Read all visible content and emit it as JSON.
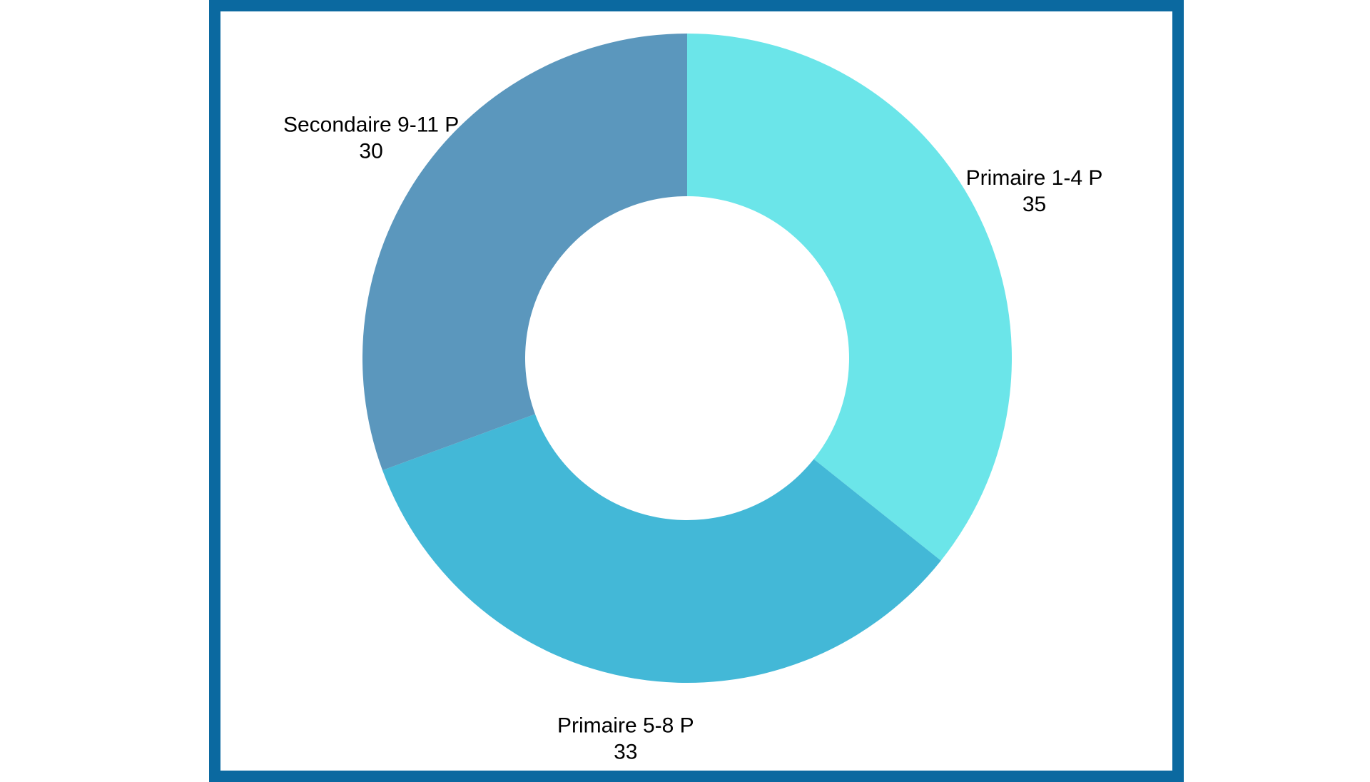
{
  "chart_data": {
    "type": "pie",
    "variant": "donut",
    "title": "",
    "labels": [
      "Primaire 1-4 P",
      "Primaire 5-8 P",
      "Secondaire 9-11 P"
    ],
    "values": [
      35,
      33,
      30
    ],
    "colors": [
      "#6BE5E9",
      "#43B8D7",
      "#5B97BD"
    ],
    "data_labels_shown": [
      "category",
      "value"
    ],
    "start_angle_deg": 0,
    "direction": "clockwise",
    "legend": "none"
  },
  "frame": {
    "border_color": "#0B69A0"
  }
}
